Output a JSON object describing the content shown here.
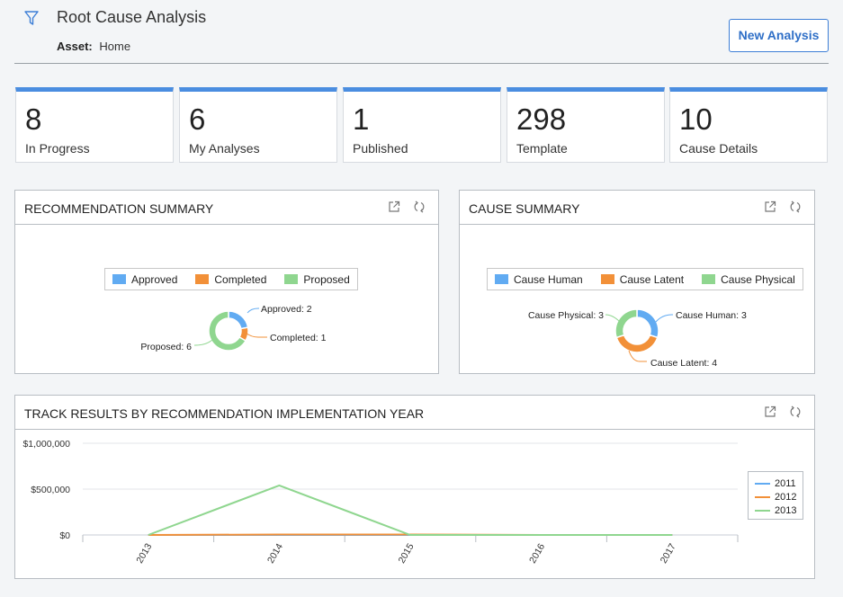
{
  "header": {
    "title": "Root Cause Analysis",
    "asset_label": "Asset:",
    "asset_value": "Home",
    "new_analysis_label": "New Analysis"
  },
  "tiles": [
    {
      "value": "8",
      "label": "In Progress"
    },
    {
      "value": "6",
      "label": "My Analyses"
    },
    {
      "value": "1",
      "label": "Published"
    },
    {
      "value": "298",
      "label": "Template"
    },
    {
      "value": "10",
      "label": "Cause Details"
    }
  ],
  "colors": {
    "accent": "#4a8de0",
    "blue": "#61abf2",
    "orange": "#f29038",
    "green": "#8fd68f"
  },
  "recommendation_summary": {
    "title": "RECOMMENDATION SUMMARY",
    "legend": [
      "Approved",
      "Completed",
      "Proposed"
    ],
    "labels": [
      "Approved: 2",
      "Completed: 1",
      "Proposed: 6"
    ]
  },
  "cause_summary": {
    "title": "CAUSE SUMMARY",
    "legend": [
      "Cause Human",
      "Cause Latent",
      "Cause Physical"
    ],
    "labels": [
      "Cause Human: 3",
      "Cause Latent: 4",
      "Cause Physical: 3"
    ]
  },
  "track_results": {
    "title": "TRACK RESULTS BY RECOMMENDATION IMPLEMENTATION YEAR"
  },
  "chart_data": [
    {
      "type": "pie",
      "categories": [
        "Approved",
        "Completed",
        "Proposed"
      ],
      "values": [
        2,
        1,
        6
      ],
      "colors": [
        "#61abf2",
        "#f29038",
        "#8fd68f"
      ]
    },
    {
      "type": "pie",
      "categories": [
        "Cause Human",
        "Cause Latent",
        "Cause Physical"
      ],
      "values": [
        3,
        4,
        3
      ],
      "colors": [
        "#61abf2",
        "#f29038",
        "#8fd68f"
      ]
    },
    {
      "type": "line",
      "x": [
        "2013",
        "2014",
        "2015",
        "2016",
        "2017"
      ],
      "y_ticks": [
        "$0",
        "$500,000",
        "$1,000,000"
      ],
      "ylim": [
        0,
        1000000
      ],
      "series": [
        {
          "name": "2011",
          "color": "#61abf2",
          "values": [
            0,
            0,
            0,
            0,
            0
          ]
        },
        {
          "name": "2012",
          "color": "#f29038",
          "values": [
            0,
            5000,
            5000,
            0,
            0
          ]
        },
        {
          "name": "2013",
          "color": "#8fd68f",
          "values": [
            0,
            540000,
            0,
            0,
            0
          ]
        }
      ],
      "grid": true,
      "legend_position": "right"
    }
  ]
}
